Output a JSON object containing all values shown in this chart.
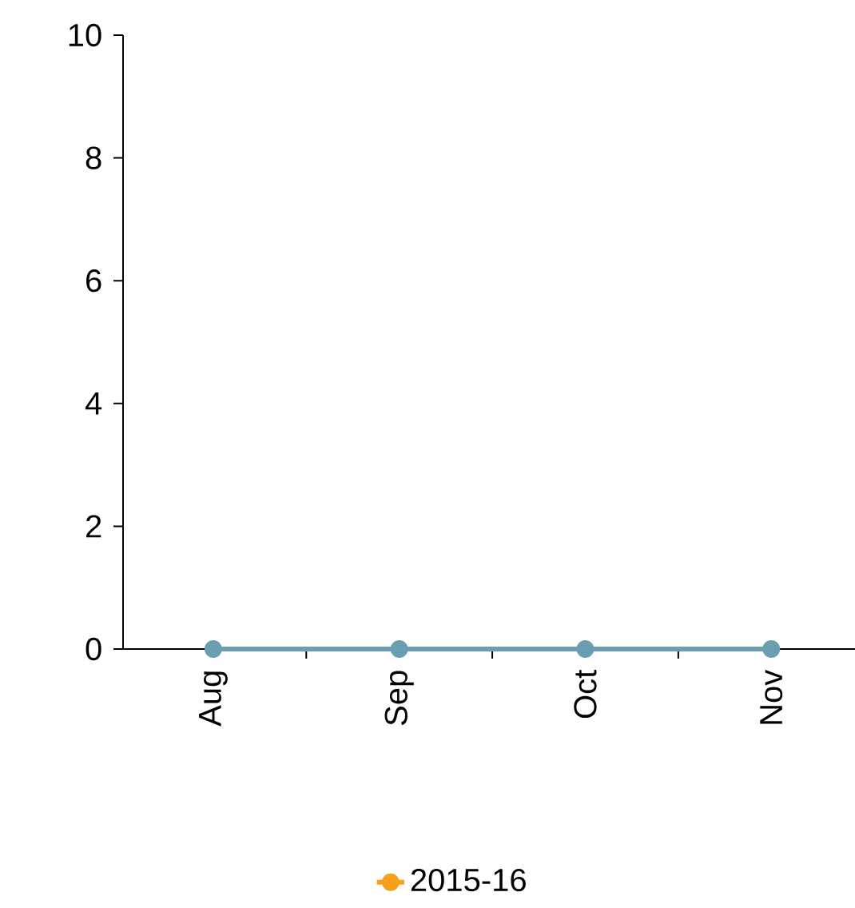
{
  "chart_data": {
    "type": "line",
    "categories": [
      "Aug",
      "Sep",
      "Oct",
      "Nov"
    ],
    "series": [
      {
        "name": "2015-16",
        "color": "#f7a01c",
        "values": [
          null,
          null,
          null,
          null
        ]
      },
      {
        "color": "#6a9fb2",
        "values": [
          0,
          0,
          0,
          0
        ]
      }
    ],
    "ylim": [
      0,
      10
    ],
    "yticks": [
      0,
      2,
      4,
      6,
      8,
      10
    ],
    "grid": false,
    "legend": "bottom",
    "marker": "circle",
    "line_style": "solid"
  }
}
